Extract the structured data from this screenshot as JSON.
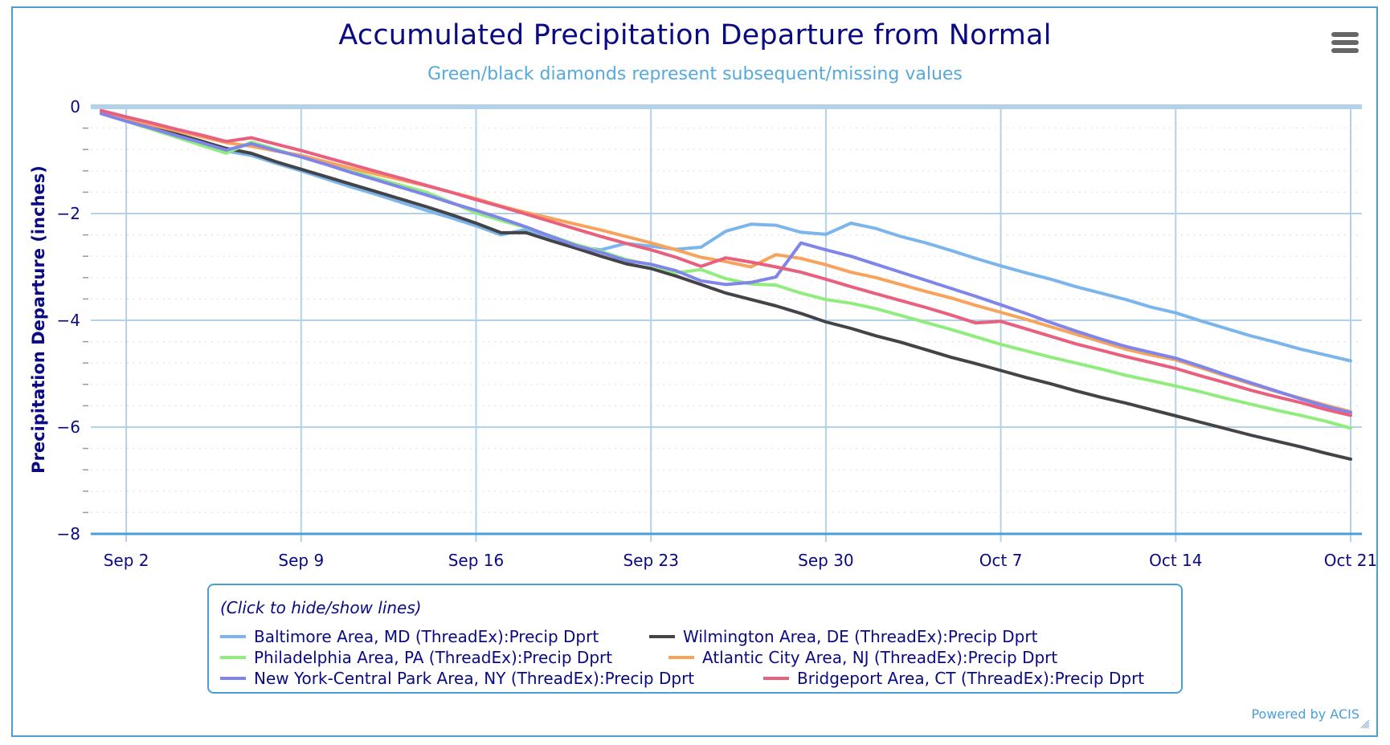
{
  "chart_data": {
    "type": "line",
    "title": "Accumulated Precipitation Departure from Normal",
    "subtitle": "Green/black diamonds represent subsequent/missing values",
    "xlabel": "",
    "ylabel": "Precipitation Departure (inches)",
    "ylim": [
      -8,
      0
    ],
    "y_ticks": [
      0,
      -2,
      -4,
      -6,
      -8
    ],
    "y_minor_step": 0.4,
    "x_start_date": "Sep 1",
    "x_tick_labels": [
      "Sep 2",
      "Sep 9",
      "Sep 16",
      "Sep 23",
      "Sep 30",
      "Oct 7",
      "Oct 14",
      "Oct 21"
    ],
    "x_tick_day_index": [
      1,
      8,
      15,
      22,
      29,
      36,
      43,
      50
    ],
    "x": [
      "Sep 1",
      "Sep 2",
      "Sep 3",
      "Sep 4",
      "Sep 5",
      "Sep 6",
      "Sep 7",
      "Sep 8",
      "Sep 9",
      "Sep 10",
      "Sep 11",
      "Sep 12",
      "Sep 13",
      "Sep 14",
      "Sep 15",
      "Sep 16",
      "Sep 17",
      "Sep 18",
      "Sep 19",
      "Sep 20",
      "Sep 21",
      "Sep 22",
      "Sep 23",
      "Sep 24",
      "Sep 25",
      "Sep 26",
      "Sep 27",
      "Sep 28",
      "Sep 29",
      "Sep 30",
      "Oct 1",
      "Oct 2",
      "Oct 3",
      "Oct 4",
      "Oct 5",
      "Oct 6",
      "Oct 7",
      "Oct 8",
      "Oct 9",
      "Oct 10",
      "Oct 11",
      "Oct 12",
      "Oct 13",
      "Oct 14",
      "Oct 15",
      "Oct 16",
      "Oct 17",
      "Oct 18",
      "Oct 19",
      "Oct 20",
      "Oct 21"
    ],
    "grid": true,
    "legend_position": "bottom",
    "series": [
      {
        "name": "Baltimore Area, MD (ThreadEx):Precip Dprt",
        "color": "#7cb5ec",
        "values": [
          -0.12,
          -0.26,
          -0.4,
          -0.54,
          -0.68,
          -0.83,
          -0.91,
          -1.06,
          -1.2,
          -1.35,
          -1.5,
          -1.64,
          -1.79,
          -1.94,
          -2.08,
          -2.23,
          -2.4,
          -2.3,
          -2.48,
          -2.62,
          -2.68,
          -2.56,
          -2.61,
          -2.67,
          -2.63,
          -2.33,
          -2.2,
          -2.22,
          -2.35,
          -2.39,
          -2.18,
          -2.28,
          -2.43,
          -2.55,
          -2.69,
          -2.84,
          -2.98,
          -3.11,
          -3.23,
          -3.37,
          -3.49,
          -3.61,
          -3.75,
          -3.86,
          -4.01,
          -4.15,
          -4.29,
          -4.41,
          -4.54,
          -4.65,
          -4.76
        ]
      },
      {
        "name": "Wilmington Area, DE (ThreadEx):Precip Dprt",
        "color": "#434348",
        "values": [
          -0.12,
          -0.25,
          -0.38,
          -0.51,
          -0.64,
          -0.78,
          -0.87,
          -1.03,
          -1.17,
          -1.31,
          -1.45,
          -1.59,
          -1.73,
          -1.87,
          -2.02,
          -2.18,
          -2.36,
          -2.36,
          -2.51,
          -2.65,
          -2.8,
          -2.94,
          -3.03,
          -3.17,
          -3.33,
          -3.49,
          -3.61,
          -3.73,
          -3.87,
          -4.03,
          -4.15,
          -4.29,
          -4.41,
          -4.55,
          -4.69,
          -4.81,
          -4.94,
          -5.07,
          -5.19,
          -5.32,
          -5.44,
          -5.55,
          -5.67,
          -5.79,
          -5.91,
          -6.03,
          -6.15,
          -6.26,
          -6.37,
          -6.49,
          -6.6
        ]
      },
      {
        "name": "Philadelphia Area, PA (ThreadEx):Precip Dprt",
        "color": "#90ed7d",
        "values": [
          -0.12,
          -0.27,
          -0.42,
          -0.57,
          -0.72,
          -0.87,
          -0.66,
          -0.8,
          -0.94,
          -1.07,
          -1.2,
          -1.34,
          -1.47,
          -1.6,
          -1.79,
          -1.99,
          -2.13,
          -2.26,
          -2.42,
          -2.58,
          -2.71,
          -2.86,
          -2.96,
          -3.11,
          -3.05,
          -3.22,
          -3.32,
          -3.34,
          -3.49,
          -3.61,
          -3.68,
          -3.78,
          -3.91,
          -4.04,
          -4.17,
          -4.31,
          -4.45,
          -4.57,
          -4.69,
          -4.8,
          -4.91,
          -5.03,
          -5.13,
          -5.23,
          -5.34,
          -5.46,
          -5.57,
          -5.68,
          -5.78,
          -5.89,
          -6.02
        ]
      },
      {
        "name": "Atlantic City Area, NJ (ThreadEx):Precip Dprt",
        "color": "#f7a35c",
        "values": [
          -0.1,
          -0.22,
          -0.34,
          -0.45,
          -0.56,
          -0.67,
          -0.74,
          -0.83,
          -0.91,
          -1.03,
          -1.15,
          -1.26,
          -1.37,
          -1.48,
          -1.6,
          -1.72,
          -1.86,
          -1.98,
          -2.09,
          -2.2,
          -2.31,
          -2.43,
          -2.55,
          -2.68,
          -2.82,
          -2.9,
          -3.0,
          -2.77,
          -2.84,
          -2.96,
          -3.1,
          -3.2,
          -3.33,
          -3.46,
          -3.58,
          -3.72,
          -3.85,
          -3.98,
          -4.12,
          -4.26,
          -4.4,
          -4.54,
          -4.65,
          -4.74,
          -4.89,
          -5.04,
          -5.19,
          -5.33,
          -5.46,
          -5.59,
          -5.71
        ]
      },
      {
        "name": "New York-Central Park Area, NY (ThreadEx):Precip Dprt",
        "color": "#8085e9",
        "values": [
          -0.13,
          -0.27,
          -0.4,
          -0.54,
          -0.67,
          -0.81,
          -0.69,
          -0.82,
          -0.94,
          -1.08,
          -1.23,
          -1.37,
          -1.51,
          -1.65,
          -1.8,
          -1.94,
          -2.09,
          -2.25,
          -2.43,
          -2.6,
          -2.73,
          -2.88,
          -2.95,
          -3.07,
          -3.26,
          -3.33,
          -3.29,
          -3.19,
          -2.55,
          -2.68,
          -2.8,
          -2.95,
          -3.1,
          -3.25,
          -3.4,
          -3.55,
          -3.71,
          -3.87,
          -4.04,
          -4.2,
          -4.35,
          -4.49,
          -4.6,
          -4.71,
          -4.86,
          -5.02,
          -5.17,
          -5.32,
          -5.47,
          -5.61,
          -5.73
        ]
      },
      {
        "name": "Bridgeport Area, CT (ThreadEx):Precip Dprt",
        "color": "#e9607f",
        "values": [
          -0.07,
          -0.19,
          -0.3,
          -0.42,
          -0.53,
          -0.65,
          -0.58,
          -0.7,
          -0.82,
          -0.95,
          -1.08,
          -1.21,
          -1.34,
          -1.47,
          -1.6,
          -1.74,
          -1.87,
          -2.01,
          -2.15,
          -2.29,
          -2.43,
          -2.56,
          -2.68,
          -2.82,
          -2.99,
          -2.83,
          -2.91,
          -3.0,
          -3.1,
          -3.23,
          -3.37,
          -3.5,
          -3.63,
          -3.76,
          -3.9,
          -4.05,
          -4.02,
          -4.16,
          -4.3,
          -4.44,
          -4.56,
          -4.68,
          -4.79,
          -4.9,
          -5.04,
          -5.17,
          -5.31,
          -5.43,
          -5.54,
          -5.67,
          -5.78
        ]
      }
    ]
  },
  "legend": {
    "header": "(Click to hide/show lines)"
  },
  "credits": "Powered by ACIS",
  "menu": {
    "icon": "hamburger-menu-icon"
  },
  "colors": {
    "title": "#0a0a82",
    "subtitle": "#55a9dc",
    "border": "#4a9fd8",
    "grid": "#b3d1e8"
  }
}
